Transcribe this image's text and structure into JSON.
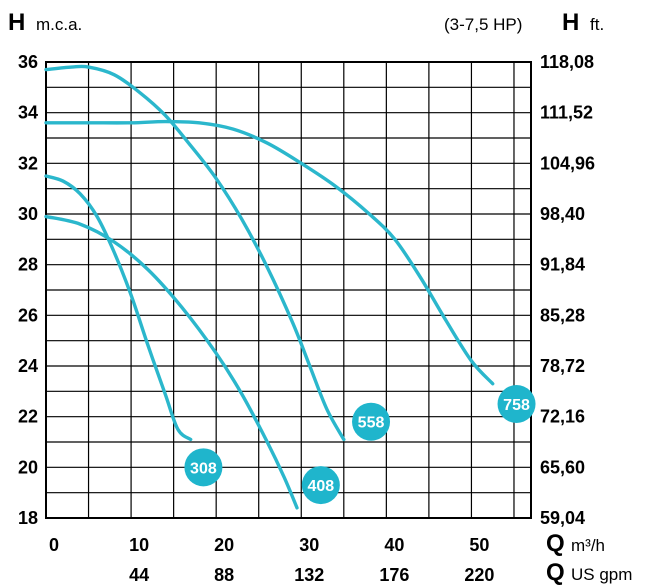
{
  "header": {
    "left_symbol": "H",
    "left_unit": "m.c.a.",
    "power_range": "(3-7,5 HP)",
    "right_symbol": "H",
    "right_unit": "ft."
  },
  "footer": {
    "q1_symbol": "Q",
    "q1_unit": "m³/h",
    "q2_symbol": "Q",
    "q2_unit": "US gpm"
  },
  "colors": {
    "curve": "#2bb7cc",
    "badge": "#1fb5cc",
    "grid": "#000000"
  },
  "chart_data": {
    "type": "line",
    "xlim": [
      0,
      57
    ],
    "ylim": [
      18,
      36
    ],
    "x_ticks": [
      0,
      10,
      20,
      30,
      40,
      50
    ],
    "x_tick_labels": [
      "0",
      "10",
      "20",
      "30",
      "40",
      "50"
    ],
    "x2_tick_labels": [
      "44",
      "88",
      "132",
      "176",
      "220"
    ],
    "x2_tick_positions": [
      10,
      20,
      30,
      40,
      50
    ],
    "y_ticks": [
      18,
      20,
      22,
      24,
      26,
      28,
      30,
      32,
      34,
      36
    ],
    "y_tick_labels": [
      "18",
      "20",
      "22",
      "24",
      "26",
      "28",
      "30",
      "32",
      "34",
      "36"
    ],
    "y2_tick_labels": [
      "59,04",
      "65,60",
      "72,16",
      "78,72",
      "85,28",
      "91,84",
      "98,40",
      "104,96",
      "111,52",
      "118,08"
    ],
    "grid": true,
    "series": [
      {
        "name": "308",
        "label_at": [
          18.5,
          20.0
        ],
        "points": [
          [
            0,
            31.5
          ],
          [
            2,
            31.3
          ],
          [
            4,
            30.8
          ],
          [
            6,
            29.9
          ],
          [
            8,
            28.5
          ],
          [
            10,
            26.8
          ],
          [
            12,
            24.8
          ],
          [
            14,
            22.9
          ],
          [
            15.5,
            21.5
          ],
          [
            17,
            21.1
          ]
        ]
      },
      {
        "name": "408",
        "label_at": [
          32.3,
          19.3
        ],
        "points": [
          [
            0,
            29.9
          ],
          [
            4,
            29.6
          ],
          [
            8,
            28.9
          ],
          [
            12,
            27.8
          ],
          [
            16,
            26.3
          ],
          [
            20,
            24.5
          ],
          [
            23,
            22.9
          ],
          [
            26,
            21.0
          ],
          [
            28,
            19.6
          ],
          [
            29.5,
            18.4
          ]
        ]
      },
      {
        "name": "558",
        "label_at": [
          38.2,
          21.8
        ],
        "points": [
          [
            0,
            35.7
          ],
          [
            3,
            35.8
          ],
          [
            5,
            35.8
          ],
          [
            8,
            35.5
          ],
          [
            11,
            34.8
          ],
          [
            14,
            33.9
          ],
          [
            17,
            32.7
          ],
          [
            20,
            31.4
          ],
          [
            23,
            29.8
          ],
          [
            26,
            27.9
          ],
          [
            29,
            25.7
          ],
          [
            31,
            24.0
          ],
          [
            33,
            22.3
          ],
          [
            35,
            21.1
          ]
        ]
      },
      {
        "name": "758",
        "label_at": [
          55.3,
          22.5
        ],
        "points": [
          [
            0,
            33.6
          ],
          [
            5,
            33.6
          ],
          [
            10,
            33.6
          ],
          [
            14,
            33.65
          ],
          [
            18,
            33.6
          ],
          [
            22,
            33.35
          ],
          [
            26,
            32.8
          ],
          [
            30,
            32.0
          ],
          [
            34,
            31.1
          ],
          [
            38,
            30.0
          ],
          [
            41,
            29.0
          ],
          [
            44,
            27.5
          ],
          [
            47,
            25.8
          ],
          [
            50,
            24.2
          ],
          [
            52.5,
            23.3
          ]
        ]
      }
    ]
  }
}
